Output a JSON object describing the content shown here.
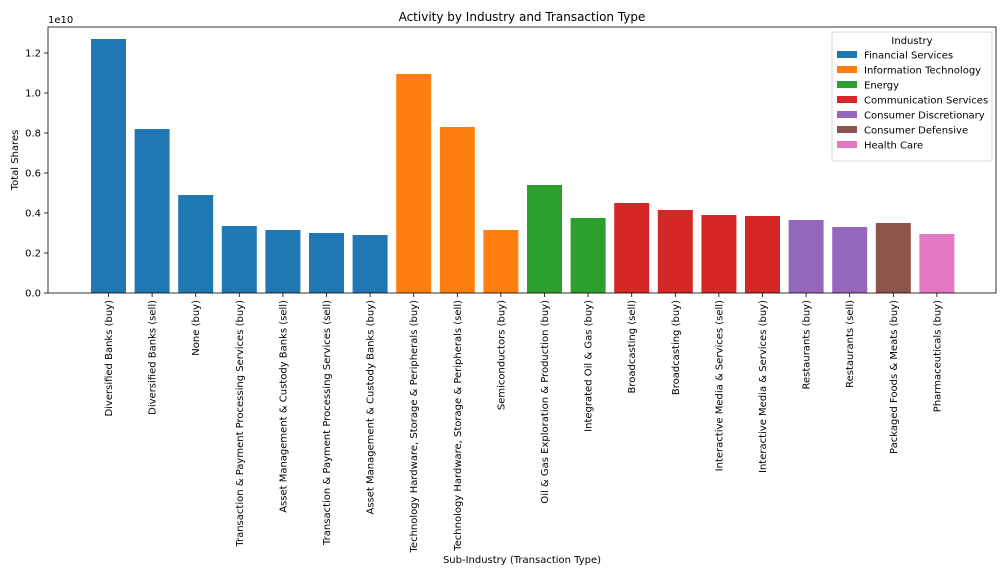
{
  "chart_data": {
    "type": "bar",
    "title": "Activity by Industry and Transaction Type",
    "xlabel": "Sub-Industry (Transaction Type)",
    "ylabel": "Total Shares",
    "y_scale_label": "1e10",
    "y_multiplier": 10000000000,
    "ylim": [
      0,
      1.33
    ],
    "yticks": [
      0.0,
      0.2,
      0.4,
      0.6,
      0.8,
      1.0,
      1.2
    ],
    "ytick_labels": [
      "0.0",
      "0.2",
      "0.4",
      "0.6",
      "0.8",
      "1.0",
      "1.2"
    ],
    "grid": false,
    "legend": {
      "title": "Industry",
      "placement": "top-right",
      "entries": [
        {
          "name": "Financial Services",
          "color": "#1f77b4"
        },
        {
          "name": "Information Technology",
          "color": "#ff7f0e"
        },
        {
          "name": "Energy",
          "color": "#2ca02c"
        },
        {
          "name": "Communication Services",
          "color": "#d62728"
        },
        {
          "name": "Consumer Discretionary",
          "color": "#9467bd"
        },
        {
          "name": "Consumer Defensive",
          "color": "#8c564b"
        },
        {
          "name": "Health Care",
          "color": "#e377c2"
        }
      ]
    },
    "categories": [
      "Diversified Banks (buy)",
      "Diversified Banks (sell)",
      "None (buy)",
      "Transaction & Payment Processing Services (buy)",
      "Asset Management & Custody Banks (sell)",
      "Transaction & Payment Processing Services (sell)",
      "Asset Management & Custody Banks (buy)",
      "Technology Hardware, Storage & Peripherals (buy)",
      "Technology Hardware, Storage & Peripherals (sell)",
      "Semiconductors (buy)",
      "Oil & Gas Exploration & Production (buy)",
      "Integrated Oil & Gas (buy)",
      "Broadcasting (sell)",
      "Broadcasting (buy)",
      "Interactive Media & Services (sell)",
      "Interactive Media & Services (buy)",
      "Restaurants (buy)",
      "Restaurants (sell)",
      "Packaged Foods & Meats (buy)",
      "Pharmaceuticals (buy)"
    ],
    "values": [
      1.27,
      0.82,
      0.49,
      0.335,
      0.315,
      0.3,
      0.29,
      1.095,
      0.83,
      0.315,
      0.54,
      0.375,
      0.45,
      0.415,
      0.39,
      0.385,
      0.365,
      0.33,
      0.35,
      0.295
    ],
    "industries": [
      "Financial Services",
      "Financial Services",
      "Financial Services",
      "Financial Services",
      "Financial Services",
      "Financial Services",
      "Financial Services",
      "Information Technology",
      "Information Technology",
      "Information Technology",
      "Energy",
      "Energy",
      "Communication Services",
      "Communication Services",
      "Communication Services",
      "Communication Services",
      "Consumer Discretionary",
      "Consumer Discretionary",
      "Consumer Defensive",
      "Health Care"
    ]
  }
}
